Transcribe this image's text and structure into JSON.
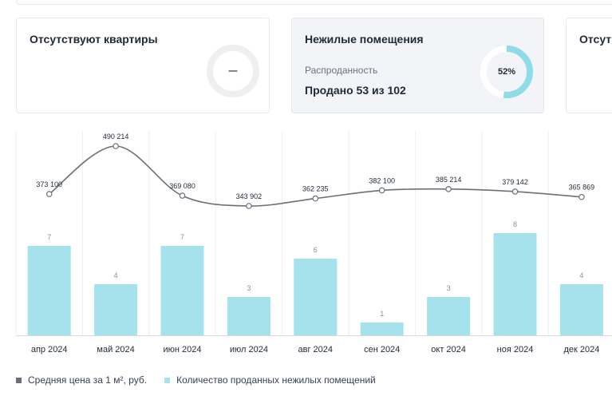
{
  "cards": [
    {
      "title": "Отсутствуют квартиры",
      "ring_text": "—"
    },
    {
      "title": "Нежилые помещения",
      "subtitle": "Распроданность",
      "value": "Продано 53 из 102",
      "ring_text": "52%",
      "progress": 0.52
    },
    {
      "title": "Отсут"
    }
  ],
  "chart_data": {
    "type": "bar",
    "categories": [
      "апр 2024",
      "май 2024",
      "июн 2024",
      "июл 2024",
      "авг 2024",
      "сен 2024",
      "окт 2024",
      "ноя 2024",
      "дек 2024"
    ],
    "series": [
      {
        "name": "Средняя цена за 1 м², руб.",
        "type": "line",
        "values": [
          373100,
          490214,
          369080,
          343902,
          362235,
          382100,
          385214,
          379142,
          365869
        ],
        "labels": [
          "373 100",
          "490 214",
          "369 080",
          "343 902",
          "362 235",
          "382 100",
          "385 214",
          "379 142",
          "365 869"
        ]
      },
      {
        "name": "Количество проданных нежилых помещений",
        "type": "bar",
        "values": [
          7,
          4,
          7,
          3,
          6,
          1,
          3,
          8,
          4
        ]
      }
    ],
    "bar_ylim": [
      0,
      8
    ],
    "line_ylim": [
      343902,
      490214
    ],
    "legend_position": "bottom-left",
    "grid": false
  },
  "colors": {
    "bar": "#a6e2ec",
    "line": "#6b6f7a",
    "ring_track": "#eeeff1",
    "ring_fill": "#8fdbe8",
    "card_active_bg": "#f2f4f7",
    "column_divider": "#eceef1"
  }
}
